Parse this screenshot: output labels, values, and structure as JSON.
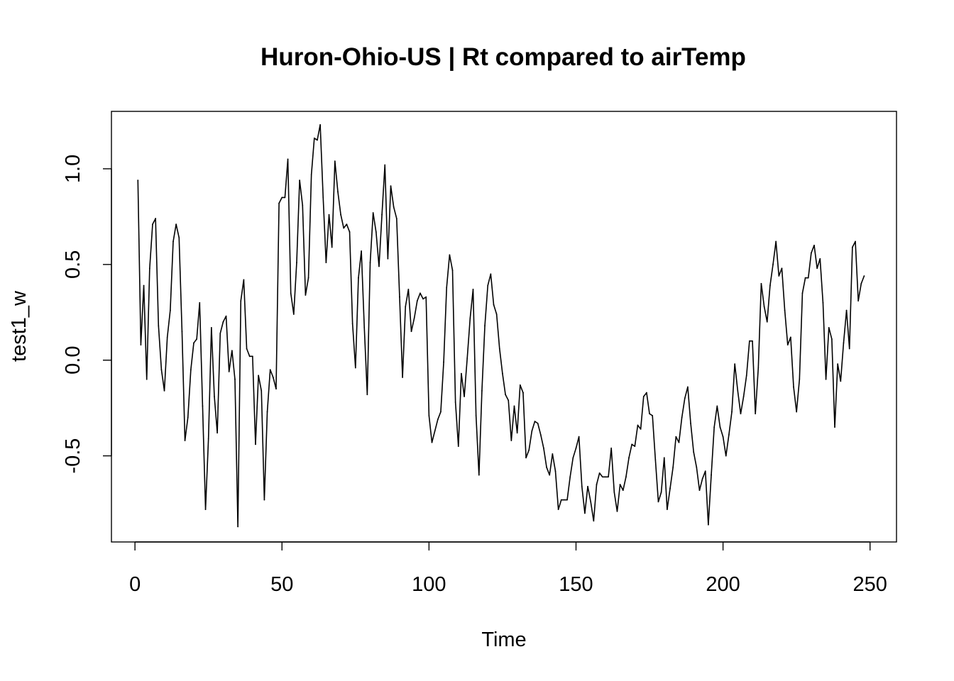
{
  "chart_data": {
    "type": "line",
    "title": "Huron-Ohio-US | Rt compared to airTemp",
    "xlabel": "Time",
    "ylabel": "test1_w",
    "xlim": [
      -8,
      259
    ],
    "ylim": [
      -0.95,
      1.3
    ],
    "xticks": [
      0,
      50,
      100,
      150,
      200,
      250
    ],
    "xtick_labels": [
      "0",
      "50",
      "100",
      "150",
      "200",
      "250"
    ],
    "yticks": [
      -0.5,
      0.0,
      0.5,
      1.0
    ],
    "ytick_labels": [
      "-0.5",
      "0.0",
      "0.5",
      "1.0"
    ],
    "grid": false,
    "legend": "none",
    "line_color": "#000000",
    "series": [
      {
        "x_start": 1,
        "x_step": 1,
        "values": [
          0.94,
          0.08,
          0.39,
          -0.1,
          0.48,
          0.71,
          0.74,
          0.18,
          -0.05,
          -0.16,
          0.12,
          0.26,
          0.62,
          0.71,
          0.64,
          0.15,
          -0.42,
          -0.3,
          -0.05,
          0.09,
          0.11,
          0.3,
          -0.24,
          -0.78,
          -0.41,
          0.17,
          -0.19,
          -0.38,
          0.14,
          0.2,
          0.23,
          -0.06,
          0.05,
          -0.1,
          -0.87,
          0.31,
          0.42,
          0.06,
          0.02,
          0.02,
          -0.44,
          -0.08,
          -0.16,
          -0.73,
          -0.27,
          -0.05,
          -0.09,
          -0.15,
          0.82,
          0.85,
          0.85,
          1.05,
          0.35,
          0.24,
          0.51,
          0.94,
          0.81,
          0.34,
          0.43,
          0.97,
          1.16,
          1.15,
          1.23,
          0.85,
          0.51,
          0.76,
          0.59,
          1.04,
          0.88,
          0.76,
          0.69,
          0.71,
          0.67,
          0.19,
          -0.04,
          0.43,
          0.57,
          0.17,
          -0.18,
          0.51,
          0.77,
          0.67,
          0.49,
          0.76,
          1.02,
          0.53,
          0.91,
          0.8,
          0.74,
          0.33,
          -0.09,
          0.28,
          0.37,
          0.15,
          0.22,
          0.31,
          0.35,
          0.32,
          0.33,
          -0.29,
          -0.43,
          -0.37,
          -0.31,
          -0.27,
          -0.01,
          0.38,
          0.55,
          0.47,
          -0.22,
          -0.45,
          -0.07,
          -0.19,
          0.01,
          0.22,
          0.37,
          -0.29,
          -0.6,
          -0.16,
          0.18,
          0.39,
          0.45,
          0.29,
          0.24,
          0.06,
          -0.07,
          -0.18,
          -0.21,
          -0.42,
          -0.24,
          -0.38,
          -0.13,
          -0.17,
          -0.51,
          -0.47,
          -0.37,
          -0.32,
          -0.33,
          -0.39,
          -0.46,
          -0.56,
          -0.6,
          -0.49,
          -0.58,
          -0.78,
          -0.73,
          -0.73,
          -0.73,
          -0.61,
          -0.51,
          -0.46,
          -0.4,
          -0.66,
          -0.8,
          -0.66,
          -0.74,
          -0.84,
          -0.65,
          -0.59,
          -0.61,
          -0.61,
          -0.61,
          -0.46,
          -0.69,
          -0.79,
          -0.65,
          -0.68,
          -0.61,
          -0.51,
          -0.44,
          -0.45,
          -0.34,
          -0.36,
          -0.19,
          -0.17,
          -0.28,
          -0.29,
          -0.52,
          -0.74,
          -0.69,
          -0.51,
          -0.78,
          -0.67,
          -0.56,
          -0.4,
          -0.43,
          -0.3,
          -0.2,
          -0.14,
          -0.33,
          -0.48,
          -0.56,
          -0.68,
          -0.62,
          -0.58,
          -0.86,
          -0.6,
          -0.35,
          -0.24,
          -0.35,
          -0.4,
          -0.5,
          -0.39,
          -0.27,
          -0.02,
          -0.16,
          -0.28,
          -0.19,
          -0.08,
          0.1,
          0.1,
          -0.28,
          -0.04,
          0.4,
          0.28,
          0.2,
          0.39,
          0.5,
          0.62,
          0.44,
          0.48,
          0.26,
          0.08,
          0.12,
          -0.14,
          -0.27,
          -0.1,
          0.35,
          0.43,
          0.43,
          0.56,
          0.6,
          0.48,
          0.53,
          0.3,
          -0.1,
          0.17,
          0.11,
          -0.35,
          -0.02,
          -0.11,
          0.09,
          0.26,
          0.06,
          0.59,
          0.62,
          0.31,
          0.4,
          0.44
        ]
      }
    ]
  }
}
